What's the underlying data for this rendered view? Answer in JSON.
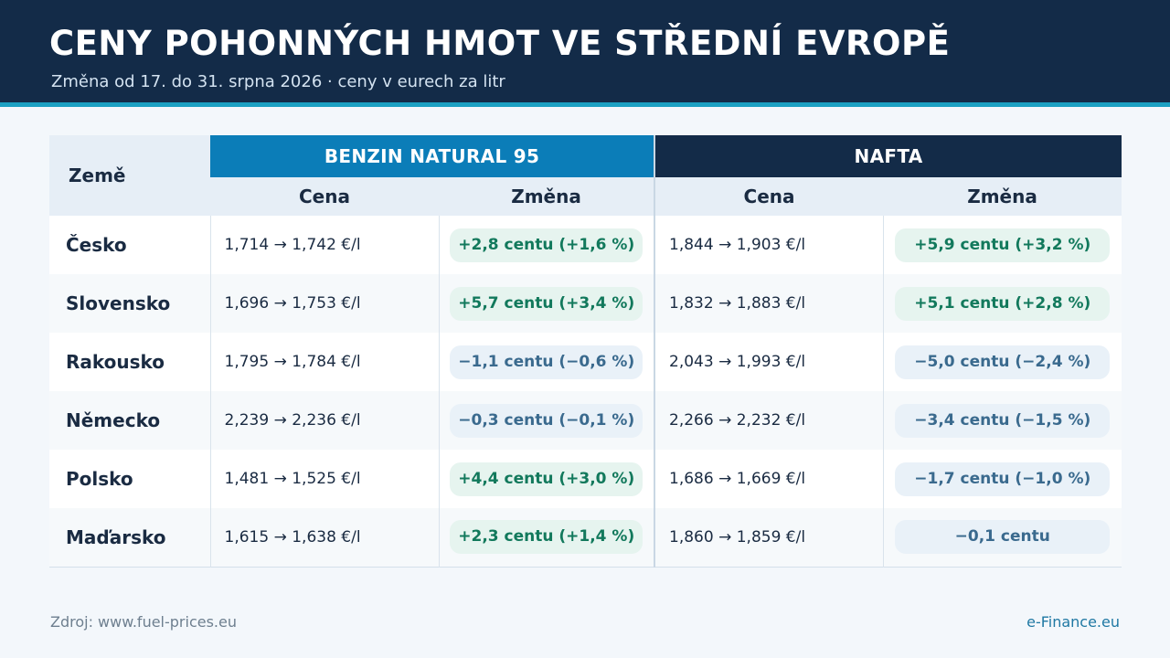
{
  "header": {
    "title": "CENY POHONNÝCH HMOT VE STŘEDNÍ EVROPĚ",
    "subtitle": "Změna od 17. do 31. srpna 2026 · ceny v eurech za litr"
  },
  "table": {
    "country_header": "Země",
    "benzin_header": "BENZIN NATURAL 95",
    "nafta_header": "NAFTA",
    "price_header": "Cena",
    "change_header": "Změna",
    "rows": [
      {
        "country": "Česko",
        "benzin_price": "1,714 → 1,742 €/l",
        "benzin_change": "+2,8 centu (+1,6 %)",
        "benzin_dir": "up",
        "nafta_price": "1,844 → 1,903 €/l",
        "nafta_change": "+5,9 centu (+3,2 %)",
        "nafta_dir": "up"
      },
      {
        "country": "Slovensko",
        "benzin_price": "1,696 → 1,753 €/l",
        "benzin_change": "+5,7 centu (+3,4 %)",
        "benzin_dir": "up",
        "nafta_price": "1,832 → 1,883 €/l",
        "nafta_change": "+5,1 centu (+2,8 %)",
        "nafta_dir": "up"
      },
      {
        "country": "Rakousko",
        "benzin_price": "1,795 → 1,784 €/l",
        "benzin_change": "−1,1 centu (−0,6 %)",
        "benzin_dir": "down",
        "nafta_price": "2,043 → 1,993 €/l",
        "nafta_change": "−5,0 centu (−2,4 %)",
        "nafta_dir": "down"
      },
      {
        "country": "Německo",
        "benzin_price": "2,239 → 2,236 €/l",
        "benzin_change": "−0,3 centu (−0,1 %)",
        "benzin_dir": "down",
        "nafta_price": "2,266 → 2,232 €/l",
        "nafta_change": "−3,4 centu (−1,5 %)",
        "nafta_dir": "down"
      },
      {
        "country": "Polsko",
        "benzin_price": "1,481 → 1,525 €/l",
        "benzin_change": "+4,4 centu (+3,0 %)",
        "benzin_dir": "up",
        "nafta_price": "1,686 → 1,669 €/l",
        "nafta_change": "−1,7 centu (−1,0 %)",
        "nafta_dir": "down"
      },
      {
        "country": "Maďarsko",
        "benzin_price": "1,615 → 1,638 €/l",
        "benzin_change": "+2,3 centu (+1,4 %)",
        "benzin_dir": "up",
        "nafta_price": "1,860 → 1,859 €/l",
        "nafta_change": "−0,1 centu",
        "nafta_dir": "down"
      }
    ]
  },
  "footer": {
    "source": "Zdroj: www.fuel-prices.eu",
    "brand": "e-Finance.eu"
  },
  "colors": {
    "header_bg": "#132b48",
    "accent": "#1ba0c2",
    "benzin": "#0b7db8",
    "increase": "#12795c",
    "decrease": "#3a6a8e"
  }
}
